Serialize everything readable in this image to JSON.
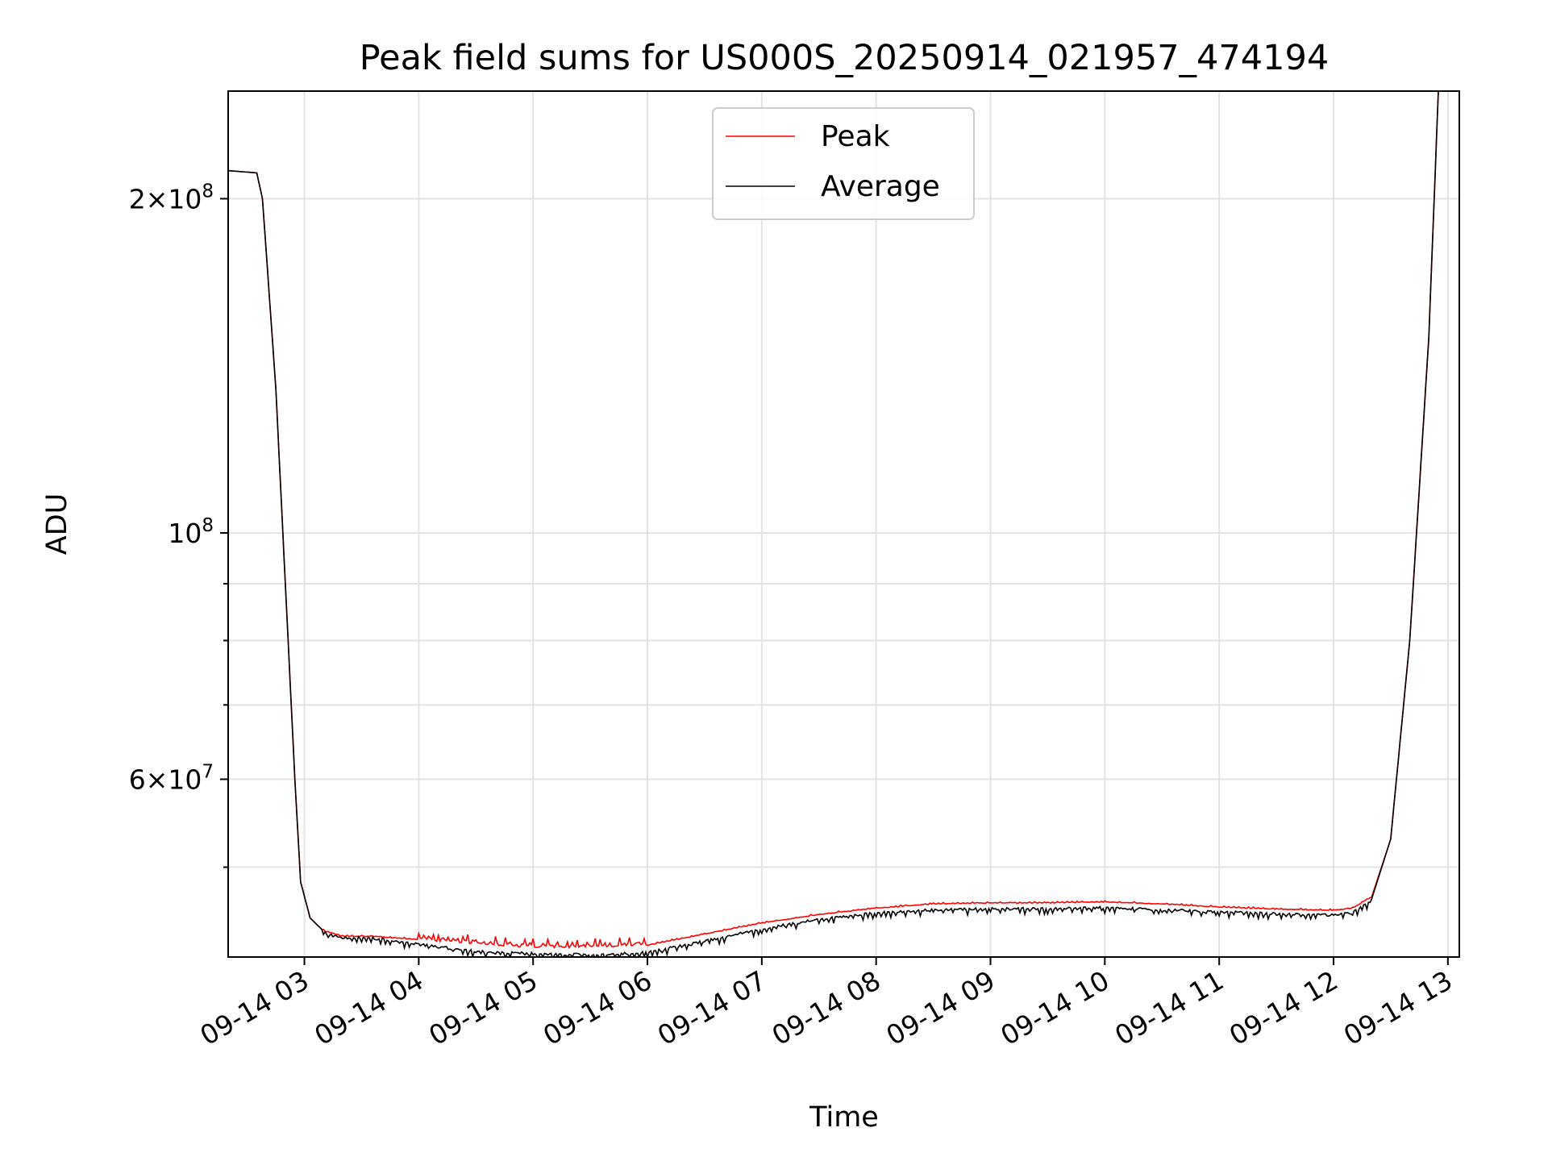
{
  "chart_data": {
    "type": "line",
    "title": "Peak field sums for US000S_20250914_021957_474194",
    "xlabel": "Time",
    "ylabel": "ADU",
    "x_scale": "time",
    "y_scale": "log",
    "xlim": [
      "09-14 02:20",
      "09-14 13:06"
    ],
    "ylim": [
      41500000,
      250000000
    ],
    "grid": true,
    "legend_position": "upper center",
    "x_ticks": [
      "09-14 03",
      "09-14 04",
      "09-14 05",
      "09-14 06",
      "09-14 07",
      "09-14 08",
      "09-14 09",
      "09-14 10",
      "09-14 11",
      "09-14 12",
      "09-14 13"
    ],
    "x_tick_times": [
      "09-14 03:00",
      "09-14 04:00",
      "09-14 05:00",
      "09-14 06:00",
      "09-14 07:00",
      "09-14 08:00",
      "09-14 09:00",
      "09-14 10:00",
      "09-14 11:00",
      "09-14 12:00",
      "09-14 13:00"
    ],
    "y_major_ticks": [
      {
        "value": 200000000,
        "mantissa": "2",
        "exponent": "8"
      },
      {
        "value": 100000000,
        "mantissa": "",
        "exponent": "8"
      },
      {
        "value": 60000000,
        "mantissa": "6",
        "exponent": "7"
      }
    ],
    "y_minor_ticks": [
      50000000,
      70000000,
      80000000,
      90000000,
      300000000
    ],
    "series": [
      {
        "name": "Peak",
        "color": "#ff0000",
        "x": [
          "09-14 02:20",
          "09-14 02:35",
          "09-14 02:38",
          "09-14 02:45",
          "09-14 02:50",
          "09-14 02:55",
          "09-14 02:58",
          "09-14 03:03",
          "09-14 03:10",
          "09-14 03:20",
          "09-14 03:35",
          "09-14 04:00",
          "09-14 04:30",
          "09-14 05:00",
          "09-14 05:30",
          "09-14 06:00",
          "09-14 06:30",
          "09-14 07:00",
          "09-14 07:30",
          "09-14 08:00",
          "09-14 08:30",
          "09-14 09:00",
          "09-14 09:30",
          "09-14 10:00",
          "09-14 10:30",
          "09-14 11:00",
          "09-14 11:30",
          "09-14 12:00",
          "09-14 12:10",
          "09-14 12:20",
          "09-14 12:30",
          "09-14 12:40",
          "09-14 12:50",
          "09-14 12:55"
        ],
        "y": [
          212000000,
          211000000,
          200000000,
          135000000,
          90000000,
          60000000,
          48500000,
          45000000,
          43800000,
          43300000,
          43300000,
          43000000,
          42600000,
          42300000,
          42300000,
          42500000,
          43500000,
          44500000,
          45300000,
          45900000,
          46300000,
          46400000,
          46400000,
          46500000,
          46300000,
          46000000,
          45800000,
          45700000,
          45900000,
          47000000,
          53000000,
          80000000,
          150000000,
          250000000
        ]
      },
      {
        "name": "Average",
        "color": "#000000",
        "x": [
          "09-14 02:20",
          "09-14 02:35",
          "09-14 02:38",
          "09-14 02:45",
          "09-14 02:50",
          "09-14 02:55",
          "09-14 02:58",
          "09-14 03:03",
          "09-14 03:10",
          "09-14 03:20",
          "09-14 03:35",
          "09-14 04:00",
          "09-14 04:30",
          "09-14 05:00",
          "09-14 05:30",
          "09-14 06:00",
          "09-14 06:30",
          "09-14 07:00",
          "09-14 07:30",
          "09-14 08:00",
          "09-14 08:30",
          "09-14 09:00",
          "09-14 09:30",
          "09-14 10:00",
          "09-14 10:30",
          "09-14 11:00",
          "09-14 11:30",
          "09-14 12:00",
          "09-14 12:10",
          "09-14 12:20",
          "09-14 12:30",
          "09-14 12:40",
          "09-14 12:50",
          "09-14 12:55"
        ],
        "y": [
          212000000,
          211000000,
          200000000,
          135000000,
          90000000,
          60000000,
          48500000,
          45000000,
          43800000,
          43300000,
          43300000,
          42700000,
          42100000,
          41900000,
          41800000,
          42000000,
          43000000,
          44100000,
          45000000,
          45600000,
          45900000,
          46000000,
          46000000,
          46100000,
          45900000,
          45700000,
          45500000,
          45400000,
          45600000,
          46800000,
          53000000,
          80000000,
          150000000,
          250000000
        ]
      }
    ]
  }
}
